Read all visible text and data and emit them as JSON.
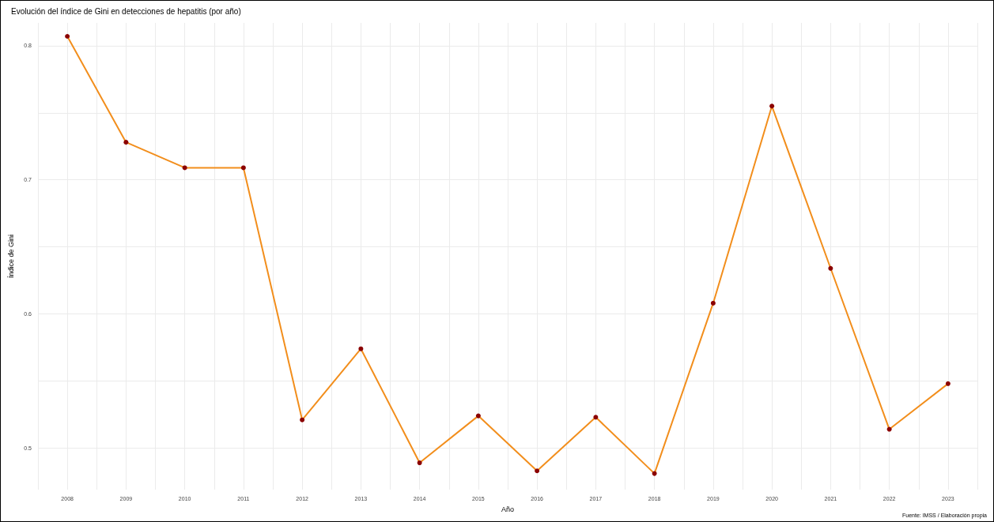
{
  "chart_data": {
    "type": "line",
    "title": "Evolución del índice de Gini en detecciones de hepatitis (por año)",
    "xlabel": "Año",
    "ylabel": "Índice de Gini",
    "x": [
      2008,
      2009,
      2010,
      2011,
      2012,
      2013,
      2014,
      2015,
      2016,
      2017,
      2018,
      2019,
      2020,
      2021,
      2022,
      2023
    ],
    "series": [
      {
        "color": "#f28e1c",
        "colors": [
          "#8b0000",
          "#8b0000",
          "#8b0000",
          "#8b0000",
          "#8b0000",
          "#8b0000",
          "#8b0000",
          "#8b0000",
          "#8b0000",
          "#8b0000",
          "#8b0000",
          "#8b0000",
          "#8b0000",
          "#8b0000",
          "#8b0000",
          "#8b0000"
        ],
        "values": [
          0.807,
          0.728,
          0.709,
          0.709,
          0.521,
          0.574,
          0.489,
          0.524,
          0.483,
          0.523,
          0.481,
          0.608,
          0.755,
          0.634,
          0.514,
          0.548
        ]
      }
    ],
    "xlim": [
      2007.5,
      2023.5
    ],
    "xticks": [
      {
        "value": 2007.5,
        "label": null
      },
      2008,
      {
        "value": 2008.5,
        "label": null
      },
      2009,
      {
        "value": 2009.5,
        "label": null
      },
      2010,
      {
        "value": 2010.5,
        "label": null
      },
      2011,
      {
        "value": 2011.5,
        "label": null
      },
      2012,
      {
        "value": 2012.5,
        "label": null
      },
      2013,
      {
        "value": 2013.5,
        "label": null
      },
      2014,
      {
        "value": 2014.5,
        "label": null
      },
      2015,
      {
        "value": 2015.5,
        "label": null
      },
      2016,
      {
        "value": 2016.5,
        "label": null
      },
      2017,
      {
        "value": 2017.5,
        "label": null
      },
      2018,
      {
        "value": 2018.5,
        "label": null
      },
      2019,
      {
        "value": 2019.5,
        "label": null
      },
      2020,
      {
        "value": 2020.5,
        "label": null
      },
      2021,
      {
        "value": 2021.5,
        "label": null
      },
      2022,
      {
        "value": 2022.5,
        "label": null
      },
      2023,
      {
        "value": 2023.5,
        "label": null
      }
    ],
    "ylim": [
      0.469,
      0.817
    ],
    "yticks": [
      {
        "value": 0.5,
        "label": "0.5"
      },
      {
        "value": 0.55,
        "label": null
      },
      {
        "value": 0.6,
        "label": "0.6"
      },
      {
        "value": 0.65,
        "label": null
      },
      {
        "value": 0.7,
        "label": "0.7"
      },
      {
        "value": 0.75,
        "label": null
      },
      {
        "value": 0.8,
        "label": "0.8"
      }
    ],
    "grid": true,
    "marker": "circle",
    "line_style": "solid",
    "annotations": [
      "Fuente: IMSS / Elaboración propia"
    ]
  }
}
